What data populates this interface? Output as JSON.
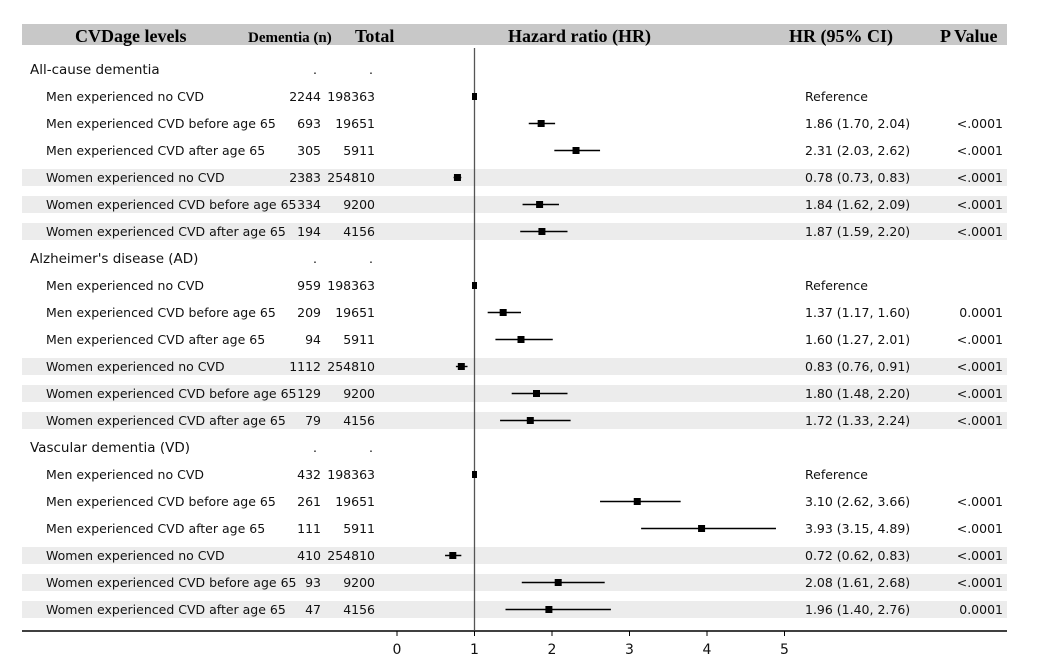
{
  "chart_data": {
    "type": "forest",
    "headers": {
      "levels": "CVDage levels",
      "dementia": "Dementia (n)",
      "total": "Total",
      "hr": "Hazard ratio (HR)",
      "ci": "HR (95% CI)",
      "p": "P Value"
    },
    "x_ticks": [
      "0",
      "1",
      "2",
      "3",
      "4",
      "5"
    ],
    "xlim": [
      0,
      5
    ],
    "reference_line": 1,
    "sections": [
      {
        "title": "All-cause dementia",
        "rows": [
          {
            "label": "Men experienced no CVD",
            "dementia": "2244",
            "total": "198363",
            "hr": 1.0,
            "lo": 1.0,
            "hi": 1.0,
            "ci_text": "Reference",
            "p": "",
            "shaded": false
          },
          {
            "label": "Men experienced CVD before age 65",
            "dementia": "693",
            "total": "19651",
            "hr": 1.86,
            "lo": 1.7,
            "hi": 2.04,
            "ci_text": "1.86 (1.70, 2.04)",
            "p": "<.0001",
            "shaded": false
          },
          {
            "label": "Men experienced CVD after age 65",
            "dementia": "305",
            "total": "5911",
            "hr": 2.31,
            "lo": 2.03,
            "hi": 2.62,
            "ci_text": "2.31 (2.03, 2.62)",
            "p": "<.0001",
            "shaded": false
          },
          {
            "label": "Women experienced no CVD",
            "dementia": "2383",
            "total": "254810",
            "hr": 0.78,
            "lo": 0.73,
            "hi": 0.83,
            "ci_text": "0.78 (0.73, 0.83)",
            "p": "<.0001",
            "shaded": true
          },
          {
            "label": "Women experienced CVD before age 65",
            "dementia": "334",
            "total": "9200",
            "hr": 1.84,
            "lo": 1.62,
            "hi": 2.09,
            "ci_text": "1.84 (1.62, 2.09)",
            "p": "<.0001",
            "shaded": true
          },
          {
            "label": "Women experienced CVD after age 65",
            "dementia": "194",
            "total": "4156",
            "hr": 1.87,
            "lo": 1.59,
            "hi": 2.2,
            "ci_text": "1.87 (1.59, 2.20)",
            "p": "<.0001",
            "shaded": true
          }
        ]
      },
      {
        "title": "Alzheimer's disease (AD)",
        "rows": [
          {
            "label": "Men experienced no CVD",
            "dementia": "959",
            "total": "198363",
            "hr": 1.0,
            "lo": 1.0,
            "hi": 1.0,
            "ci_text": "Reference",
            "p": "",
            "shaded": false
          },
          {
            "label": "Men experienced CVD before age 65",
            "dementia": "209",
            "total": "19651",
            "hr": 1.37,
            "lo": 1.17,
            "hi": 1.6,
            "ci_text": "1.37 (1.17, 1.60)",
            "p": "0.0001",
            "shaded": false
          },
          {
            "label": "Men experienced CVD after age 65",
            "dementia": "94",
            "total": "5911",
            "hr": 1.6,
            "lo": 1.27,
            "hi": 2.01,
            "ci_text": "1.60 (1.27, 2.01)",
            "p": "<.0001",
            "shaded": false
          },
          {
            "label": "Women experienced no CVD",
            "dementia": "1112",
            "total": "254810",
            "hr": 0.83,
            "lo": 0.76,
            "hi": 0.91,
            "ci_text": "0.83 (0.76, 0.91)",
            "p": "<.0001",
            "shaded": true
          },
          {
            "label": "Women experienced CVD before age 65",
            "dementia": "129",
            "total": "9200",
            "hr": 1.8,
            "lo": 1.48,
            "hi": 2.2,
            "ci_text": "1.80 (1.48, 2.20)",
            "p": "<.0001",
            "shaded": true
          },
          {
            "label": "Women experienced CVD after age 65",
            "dementia": "79",
            "total": "4156",
            "hr": 1.72,
            "lo": 1.33,
            "hi": 2.24,
            "ci_text": "1.72 (1.33, 2.24)",
            "p": "<.0001",
            "shaded": true
          }
        ]
      },
      {
        "title": "Vascular dementia (VD)",
        "rows": [
          {
            "label": "Men experienced no CVD",
            "dementia": "432",
            "total": "198363",
            "hr": 1.0,
            "lo": 1.0,
            "hi": 1.0,
            "ci_text": "Reference",
            "p": "",
            "shaded": false
          },
          {
            "label": "Men experienced CVD before age 65",
            "dementia": "261",
            "total": "19651",
            "hr": 3.1,
            "lo": 2.62,
            "hi": 3.66,
            "ci_text": "3.10 (2.62, 3.66)",
            "p": "<.0001",
            "shaded": false
          },
          {
            "label": "Men experienced CVD after age 65",
            "dementia": "111",
            "total": "5911",
            "hr": 3.93,
            "lo": 3.15,
            "hi": 4.89,
            "ci_text": "3.93 (3.15, 4.89)",
            "p": "<.0001",
            "shaded": false
          },
          {
            "label": "Women experienced no CVD",
            "dementia": "410",
            "total": "254810",
            "hr": 0.72,
            "lo": 0.62,
            "hi": 0.83,
            "ci_text": "0.72 (0.62, 0.83)",
            "p": "<.0001",
            "shaded": true
          },
          {
            "label": "Women experienced CVD before age 65",
            "dementia": "93",
            "total": "9200",
            "hr": 2.08,
            "lo": 1.61,
            "hi": 2.68,
            "ci_text": "2.08 (1.61, 2.68)",
            "p": "<.0001",
            "shaded": true
          },
          {
            "label": "Women experienced CVD after age 65",
            "dementia": "47",
            "total": "4156",
            "hr": 1.96,
            "lo": 1.4,
            "hi": 2.76,
            "ci_text": "1.96 (1.40, 2.76)",
            "p": "0.0001",
            "shaded": true
          }
        ]
      }
    ],
    "colors": {
      "header_band": "#c8c8c8",
      "row_shade": "#ececec",
      "mark": "#000000"
    }
  }
}
